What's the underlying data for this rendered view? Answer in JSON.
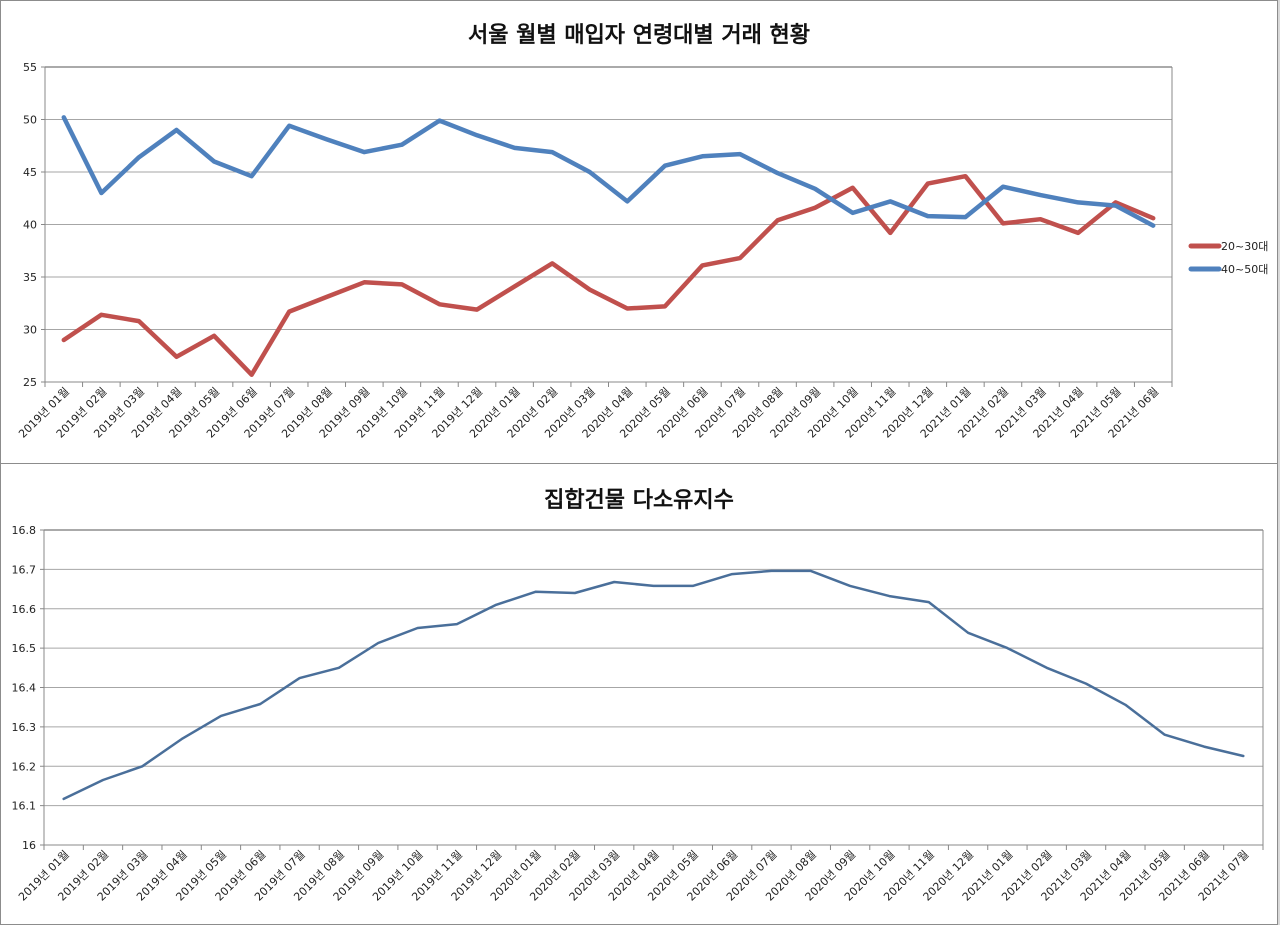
{
  "chart_data": [
    {
      "type": "line",
      "title": "서울 월별 매입자 연령대별 거래 현황",
      "xlabel": "",
      "ylabel": "",
      "ylim": [
        25,
        55
      ],
      "yticks": [
        25,
        30,
        35,
        40,
        45,
        50,
        55
      ],
      "grid": true,
      "legend_position": "right",
      "categories": [
        "2019년 01월",
        "2019년 02월",
        "2019년 03월",
        "2019년 04월",
        "2019년 05월",
        "2019년 06월",
        "2019년 07월",
        "2019년 08월",
        "2019년 09월",
        "2019년 10월",
        "2019년 11월",
        "2019년 12월",
        "2020년 01월",
        "2020년 02월",
        "2020년 03월",
        "2020년 04월",
        "2020년 05월",
        "2020년 06월",
        "2020년 07월",
        "2020년 08월",
        "2020년 09월",
        "2020년 10월",
        "2020년 11월",
        "2020년 12월",
        "2021년 01월",
        "2021년 02월",
        "2021년 03월",
        "2021년 04월",
        "2021년 05월",
        "2021년 06월"
      ],
      "series": [
        {
          "name": "20~30대",
          "color": "#c0504d",
          "values": [
            29.0,
            31.4,
            30.8,
            27.4,
            29.4,
            25.7,
            31.7,
            33.1,
            34.5,
            34.3,
            32.4,
            31.9,
            34.1,
            36.3,
            33.8,
            32.0,
            32.2,
            36.1,
            36.8,
            40.4,
            41.6,
            43.5,
            39.2,
            43.9,
            44.6,
            40.1,
            40.5,
            39.2,
            42.1,
            40.6
          ]
        },
        {
          "name": "40~50대",
          "color": "#4f81bd",
          "values": [
            50.2,
            43.0,
            46.4,
            49.0,
            46.0,
            44.6,
            49.4,
            48.1,
            46.9,
            47.6,
            49.9,
            48.5,
            47.3,
            46.9,
            45.0,
            42.2,
            45.6,
            46.5,
            46.7,
            44.9,
            43.4,
            41.1,
            42.2,
            40.8,
            40.7,
            43.6,
            42.8,
            42.1,
            41.8,
            39.9
          ]
        }
      ]
    },
    {
      "type": "line",
      "title": "집합건물 다소유지수",
      "xlabel": "",
      "ylabel": "",
      "ylim": [
        16,
        16.8
      ],
      "yticks": [
        16,
        16.1,
        16.2,
        16.3,
        16.4,
        16.5,
        16.6,
        16.7,
        16.8
      ],
      "grid": true,
      "legend_position": "none",
      "categories": [
        "2019년 01월",
        "2019년 02월",
        "2019년 03월",
        "2019년 04월",
        "2019년 05월",
        "2019년 06월",
        "2019년 07월",
        "2019년 08월",
        "2019년 09월",
        "2019년 10월",
        "2019년 11월",
        "2019년 12월",
        "2020년 01월",
        "2020년 02월",
        "2020년 03월",
        "2020년 04월",
        "2020년 05월",
        "2020년 06월",
        "2020년 07월",
        "2020년 08월",
        "2020년 09월",
        "2020년 10월",
        "2020년 11월",
        "2020년 12월",
        "2021년 01월",
        "2021년 02월",
        "2021년 03월",
        "2021년 04월",
        "2021년 05월",
        "2021년 06월",
        "2021년 07월"
      ],
      "series": [
        {
          "name": "집합건물 다소유지수",
          "color": "#4a6f9a",
          "values": [
            16.117,
            16.165,
            16.2,
            16.269,
            16.328,
            16.358,
            16.424,
            16.45,
            16.513,
            16.551,
            16.561,
            16.61,
            16.643,
            16.64,
            16.668,
            16.658,
            16.658,
            16.688,
            16.696,
            16.696,
            16.658,
            16.632,
            16.617,
            16.539,
            16.5,
            16.45,
            16.41,
            16.356,
            16.28,
            16.25,
            16.226
          ]
        }
      ]
    }
  ]
}
